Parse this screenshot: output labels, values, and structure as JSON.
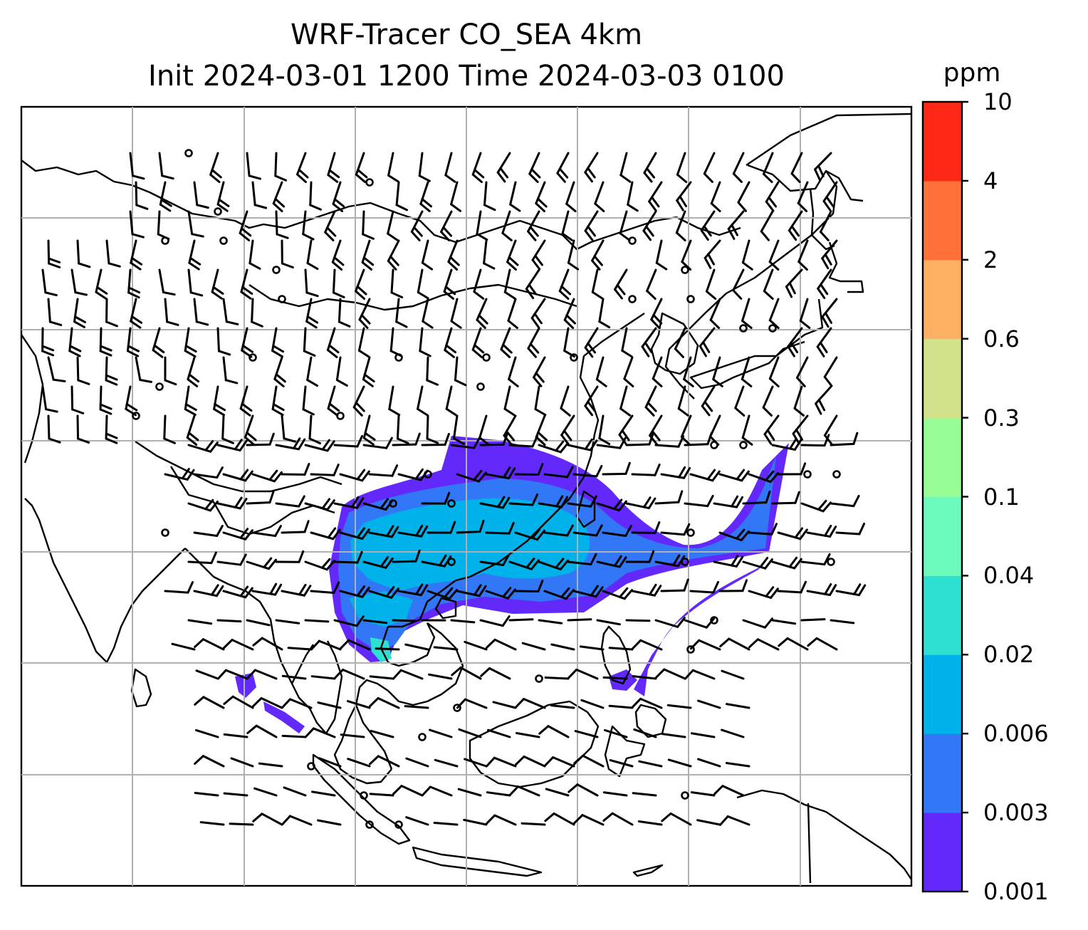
{
  "title": {
    "line1": "WRF-Tracer CO_SEA 4km",
    "line2": "Init 2024-03-01 1200 Time 2024-03-03 0100"
  },
  "colorbar": {
    "unit": "ppm",
    "levels": [
      "0.001",
      "0.003",
      "0.006",
      "0.02",
      "0.04",
      "0.1",
      "0.3",
      "0.6",
      "2",
      "4",
      "10"
    ],
    "colors": [
      "#6329fb",
      "#3278f6",
      "#00b2ea",
      "#2ee0d1",
      "#6cfbbc",
      "#99fd96",
      "#d2e28a",
      "#fdb062",
      "#ff7139",
      "#ff2716"
    ]
  },
  "map": {
    "grid": true,
    "grid_color": "#b0b0b0",
    "coastline_color": "#000000",
    "wind_barb_color": "#000000"
  }
}
